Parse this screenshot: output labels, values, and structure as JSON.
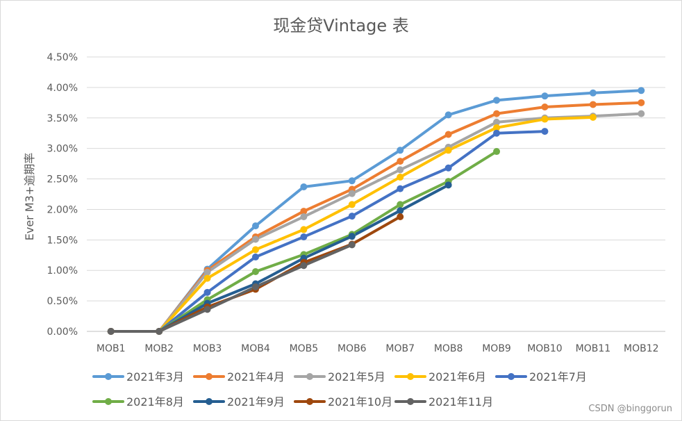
{
  "chart_data": {
    "type": "line",
    "title": "现金贷Vintage 表",
    "xlabel": "",
    "ylabel": "Ever M3+逾期率",
    "ylim": [
      0,
      0.045
    ],
    "ytick_step": 0.005,
    "yticks": [
      "0.00%",
      "0.50%",
      "1.00%",
      "1.50%",
      "2.00%",
      "2.50%",
      "3.00%",
      "3.50%",
      "4.00%",
      "4.50%"
    ],
    "grid": true,
    "legend_position": "bottom",
    "categories": [
      "MOB1",
      "MOB2",
      "MOB3",
      "MOB4",
      "MOB5",
      "MOB6",
      "MOB7",
      "MOB8",
      "MOB9",
      "MOB10",
      "MOB11",
      "MOB12"
    ],
    "series": [
      {
        "name": "2021年3月",
        "color": "#5b9bd5",
        "values": [
          0,
          0,
          0.0102,
          0.0173,
          0.0237,
          0.0247,
          0.0297,
          0.0355,
          0.0379,
          0.0386,
          0.0391,
          0.0395
        ]
      },
      {
        "name": "2021年4月",
        "color": "#ed7d31",
        "values": [
          0,
          0,
          0.01,
          0.0155,
          0.0197,
          0.0233,
          0.0279,
          0.0323,
          0.0357,
          0.0368,
          0.0372,
          0.0375
        ]
      },
      {
        "name": "2021年5月",
        "color": "#a5a5a5",
        "values": [
          0,
          0,
          0.0097,
          0.0151,
          0.0188,
          0.0226,
          0.0265,
          0.0302,
          0.0343,
          0.035,
          0.0353,
          0.0357
        ]
      },
      {
        "name": "2021年6月",
        "color": "#ffc000",
        "values": [
          0,
          0,
          0.0087,
          0.0134,
          0.0167,
          0.0208,
          0.0253,
          0.0297,
          0.0334,
          0.0348,
          0.0351,
          null
        ]
      },
      {
        "name": "2021年7月",
        "color": "#4472c4",
        "values": [
          0,
          0,
          0.0064,
          0.0122,
          0.0155,
          0.0189,
          0.0234,
          0.0268,
          0.0325,
          0.0328,
          null,
          null
        ]
      },
      {
        "name": "2021年8月",
        "color": "#70ad47",
        "values": [
          0,
          0,
          0.0052,
          0.0098,
          0.0126,
          0.0159,
          0.0208,
          0.0246,
          0.0295,
          null,
          null,
          null
        ]
      },
      {
        "name": "2021年9月",
        "color": "#255e91",
        "values": [
          0,
          0,
          0.0046,
          0.0078,
          0.012,
          0.0156,
          0.0198,
          0.024,
          null,
          null,
          null,
          null
        ]
      },
      {
        "name": "2021年10月",
        "color": "#9e480e",
        "values": [
          0,
          0,
          0.004,
          0.0069,
          0.0113,
          0.0143,
          0.0188,
          null,
          null,
          null,
          null,
          null
        ]
      },
      {
        "name": "2021年11月",
        "color": "#636363",
        "values": [
          0,
          0,
          0.0036,
          0.0073,
          0.0108,
          0.0142,
          null,
          null,
          null,
          null,
          null,
          null
        ]
      }
    ]
  },
  "watermark": "CSDN @binggorun"
}
